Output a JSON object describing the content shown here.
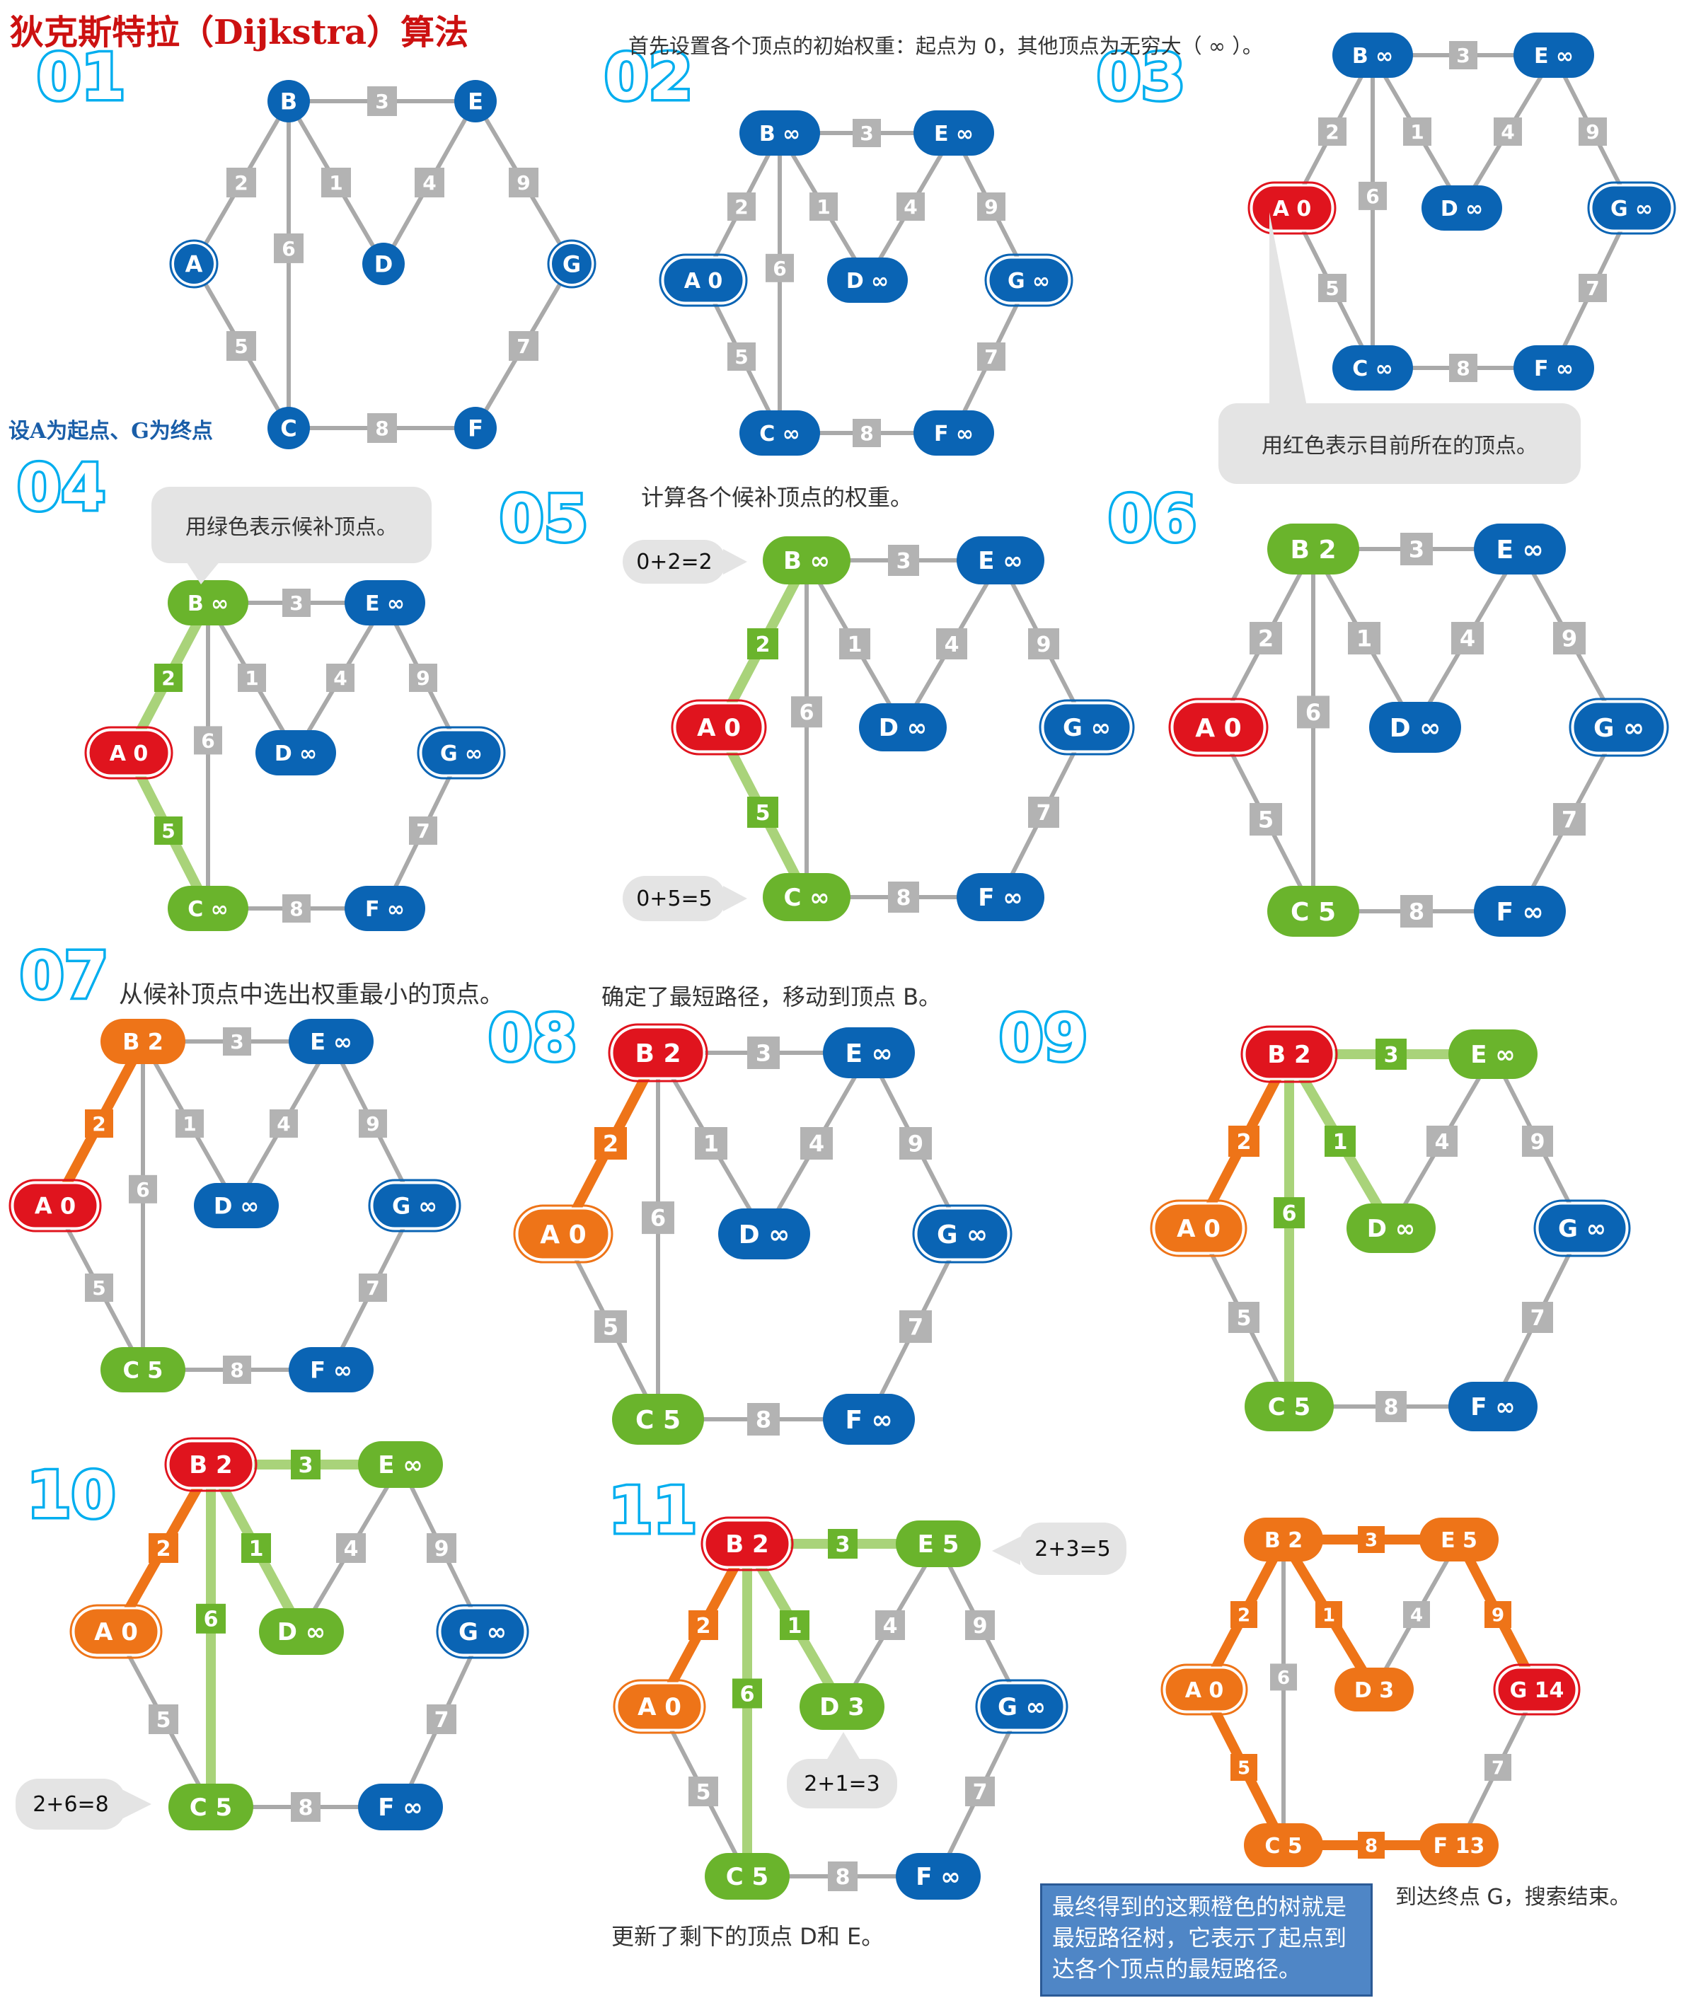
{
  "title": "狄克斯特拉（Dijkstra）算法",
  "colors": {
    "blue": "#0a64b4",
    "red": "#e0141e",
    "green": "#6ab42c",
    "green_light": "#a9d37a",
    "orange": "#ee7418",
    "gray_edge": "#a9a9a9",
    "gray_label": "#b3b3b3",
    "panel_number": "#00aeef"
  },
  "edges": [
    {
      "from": "A",
      "to": "B",
      "w": "2"
    },
    {
      "from": "A",
      "to": "C",
      "w": "5"
    },
    {
      "from": "B",
      "to": "C",
      "w": "6"
    },
    {
      "from": "B",
      "to": "D",
      "w": "1"
    },
    {
      "from": "B",
      "to": "E",
      "w": "3"
    },
    {
      "from": "D",
      "to": "E",
      "w": "4"
    },
    {
      "from": "E",
      "to": "G",
      "w": "9"
    },
    {
      "from": "C",
      "to": "F",
      "w": "8"
    },
    {
      "from": "F",
      "to": "G",
      "w": "7"
    }
  ],
  "panels": [
    {
      "number": "01",
      "simple": true,
      "nodes": {
        "A": {
          "label": "A"
        },
        "B": {
          "label": "B"
        },
        "C": {
          "label": "C"
        },
        "D": {
          "label": "D"
        },
        "E": {
          "label": "E"
        },
        "F": {
          "label": "F"
        },
        "G": {
          "label": "G"
        }
      },
      "edge_styles": {}
    },
    {
      "number": "02",
      "nodes": {
        "A": {
          "label": "A 0",
          "color": "blue",
          "outline": true
        },
        "B": {
          "label": "B ∞",
          "color": "blue"
        },
        "C": {
          "label": "C ∞",
          "color": "blue"
        },
        "D": {
          "label": "D ∞",
          "color": "blue"
        },
        "E": {
          "label": "E ∞",
          "color": "blue"
        },
        "F": {
          "label": "F ∞",
          "color": "blue"
        },
        "G": {
          "label": "G ∞",
          "color": "blue",
          "outline": true
        }
      },
      "edge_styles": {}
    },
    {
      "number": "03",
      "nodes": {
        "A": {
          "label": "A 0",
          "color": "red",
          "outline": true
        },
        "B": {
          "label": "B ∞",
          "color": "blue"
        },
        "C": {
          "label": "C ∞",
          "color": "blue"
        },
        "D": {
          "label": "D ∞",
          "color": "blue"
        },
        "E": {
          "label": "E ∞",
          "color": "blue"
        },
        "F": {
          "label": "F ∞",
          "color": "blue"
        },
        "G": {
          "label": "G ∞",
          "color": "blue",
          "outline": true
        }
      },
      "edge_styles": {}
    },
    {
      "number": "04",
      "nodes": {
        "A": {
          "label": "A 0",
          "color": "red",
          "outline": true
        },
        "B": {
          "label": "B ∞",
          "color": "green"
        },
        "C": {
          "label": "C ∞",
          "color": "green"
        },
        "D": {
          "label": "D ∞",
          "color": "blue"
        },
        "E": {
          "label": "E ∞",
          "color": "blue"
        },
        "F": {
          "label": "F ∞",
          "color": "blue"
        },
        "G": {
          "label": "G ∞",
          "color": "blue",
          "outline": true
        }
      },
      "edge_styles": {
        "A-B": "green",
        "A-C": "green"
      }
    },
    {
      "number": "05",
      "nodes": {
        "A": {
          "label": "A 0",
          "color": "red",
          "outline": true
        },
        "B": {
          "label": "B ∞",
          "color": "green"
        },
        "C": {
          "label": "C ∞",
          "color": "green"
        },
        "D": {
          "label": "D ∞",
          "color": "blue"
        },
        "E": {
          "label": "E ∞",
          "color": "blue"
        },
        "F": {
          "label": "F ∞",
          "color": "blue"
        },
        "G": {
          "label": "G ∞",
          "color": "blue",
          "outline": true
        }
      },
      "edge_styles": {
        "A-B": "green",
        "A-C": "green"
      }
    },
    {
      "number": "06",
      "nodes": {
        "A": {
          "label": "A 0",
          "color": "red",
          "outline": true
        },
        "B": {
          "label": "B 2",
          "color": "green"
        },
        "C": {
          "label": "C 5",
          "color": "green"
        },
        "D": {
          "label": "D ∞",
          "color": "blue"
        },
        "E": {
          "label": "E ∞",
          "color": "blue"
        },
        "F": {
          "label": "F ∞",
          "color": "blue"
        },
        "G": {
          "label": "G ∞",
          "color": "blue",
          "outline": true
        }
      },
      "edge_styles": {}
    },
    {
      "number": "07",
      "nodes": {
        "A": {
          "label": "A 0",
          "color": "red",
          "outline": true
        },
        "B": {
          "label": "B 2",
          "color": "orange"
        },
        "C": {
          "label": "C 5",
          "color": "green"
        },
        "D": {
          "label": "D ∞",
          "color": "blue"
        },
        "E": {
          "label": "E ∞",
          "color": "blue"
        },
        "F": {
          "label": "F ∞",
          "color": "blue"
        },
        "G": {
          "label": "G ∞",
          "color": "blue",
          "outline": true
        }
      },
      "edge_styles": {
        "A-B": "orange"
      }
    },
    {
      "number": "08",
      "nodes": {
        "A": {
          "label": "A 0",
          "color": "orange",
          "outline": true
        },
        "B": {
          "label": "B 2",
          "color": "red",
          "outline": true
        },
        "C": {
          "label": "C 5",
          "color": "green"
        },
        "D": {
          "label": "D ∞",
          "color": "blue"
        },
        "E": {
          "label": "E ∞",
          "color": "blue"
        },
        "F": {
          "label": "F ∞",
          "color": "blue"
        },
        "G": {
          "label": "G ∞",
          "color": "blue",
          "outline": true
        }
      },
      "edge_styles": {
        "A-B": "orange"
      }
    },
    {
      "number": "09",
      "nodes": {
        "A": {
          "label": "A 0",
          "color": "orange",
          "outline": true
        },
        "B": {
          "label": "B 2",
          "color": "red",
          "outline": true
        },
        "C": {
          "label": "C 5",
          "color": "green"
        },
        "D": {
          "label": "D ∞",
          "color": "green"
        },
        "E": {
          "label": "E ∞",
          "color": "green"
        },
        "F": {
          "label": "F ∞",
          "color": "blue"
        },
        "G": {
          "label": "G ∞",
          "color": "blue",
          "outline": true
        }
      },
      "edge_styles": {
        "A-B": "orange",
        "B-C": "green",
        "B-D": "green",
        "B-E": "green"
      }
    },
    {
      "number": "10",
      "nodes": {
        "A": {
          "label": "A 0",
          "color": "orange",
          "outline": true
        },
        "B": {
          "label": "B 2",
          "color": "red",
          "outline": true
        },
        "C": {
          "label": "C 5",
          "color": "green"
        },
        "D": {
          "label": "D ∞",
          "color": "green"
        },
        "E": {
          "label": "E ∞",
          "color": "green"
        },
        "F": {
          "label": "F ∞",
          "color": "blue"
        },
        "G": {
          "label": "G ∞",
          "color": "blue",
          "outline": true
        }
      },
      "edge_styles": {
        "A-B": "orange",
        "B-C": "green",
        "B-D": "green",
        "B-E": "green"
      }
    },
    {
      "number": "11",
      "nodes": {
        "A": {
          "label": "A 0",
          "color": "orange",
          "outline": true
        },
        "B": {
          "label": "B 2",
          "color": "red",
          "outline": true
        },
        "C": {
          "label": "C 5",
          "color": "green"
        },
        "D": {
          "label": "D 3",
          "color": "green"
        },
        "E": {
          "label": "E 5",
          "color": "green"
        },
        "F": {
          "label": "F ∞",
          "color": "blue"
        },
        "G": {
          "label": "G ∞",
          "color": "blue",
          "outline": true
        }
      },
      "edge_styles": {
        "A-B": "orange",
        "B-C": "green",
        "B-D": "green",
        "B-E": "green"
      }
    },
    {
      "number": "",
      "nodes": {
        "A": {
          "label": "A 0",
          "color": "orange",
          "outline": true
        },
        "B": {
          "label": "B 2",
          "color": "orange"
        },
        "C": {
          "label": "C 5",
          "color": "orange"
        },
        "D": {
          "label": "D 3",
          "color": "orange"
        },
        "E": {
          "label": "E 5",
          "color": "orange"
        },
        "F": {
          "label": "F 13",
          "color": "orange"
        },
        "G": {
          "label": "G 14",
          "color": "red",
          "outline": true
        }
      },
      "edge_styles": {
        "A-B": "orange",
        "A-C": "orange",
        "B-D": "orange",
        "B-E": "orange",
        "E-G": "orange",
        "C-F": "orange"
      }
    }
  ],
  "texts": {
    "note_start_end": "设A为起点、G为终点",
    "intro": "首先设置各个顶点的初始权重：起点为 0，其他顶点为无穷大（ ∞ ）。",
    "red_note": "用红色表示目前所在的顶点。",
    "green_note": "用绿色表示候补顶点。",
    "calc": "计算各个候补顶点的权重。",
    "calc_b": "0+2=2",
    "calc_c": "0+5=5",
    "select": "从候补顶点中选出权重最小的顶点。",
    "move": "确定了最短路径，移动到顶点 B。",
    "calc_c2": "2+6=8",
    "calc_e": "2+3=5",
    "calc_d": "2+1=3",
    "updated": "更新了剩下的顶点 D和 E。",
    "final_box": "最终得到的这颗橙色的树就是最短路径树，它表示了起点到达各个顶点的最短路径。",
    "reached": "到达终点 G，搜索结束。"
  }
}
